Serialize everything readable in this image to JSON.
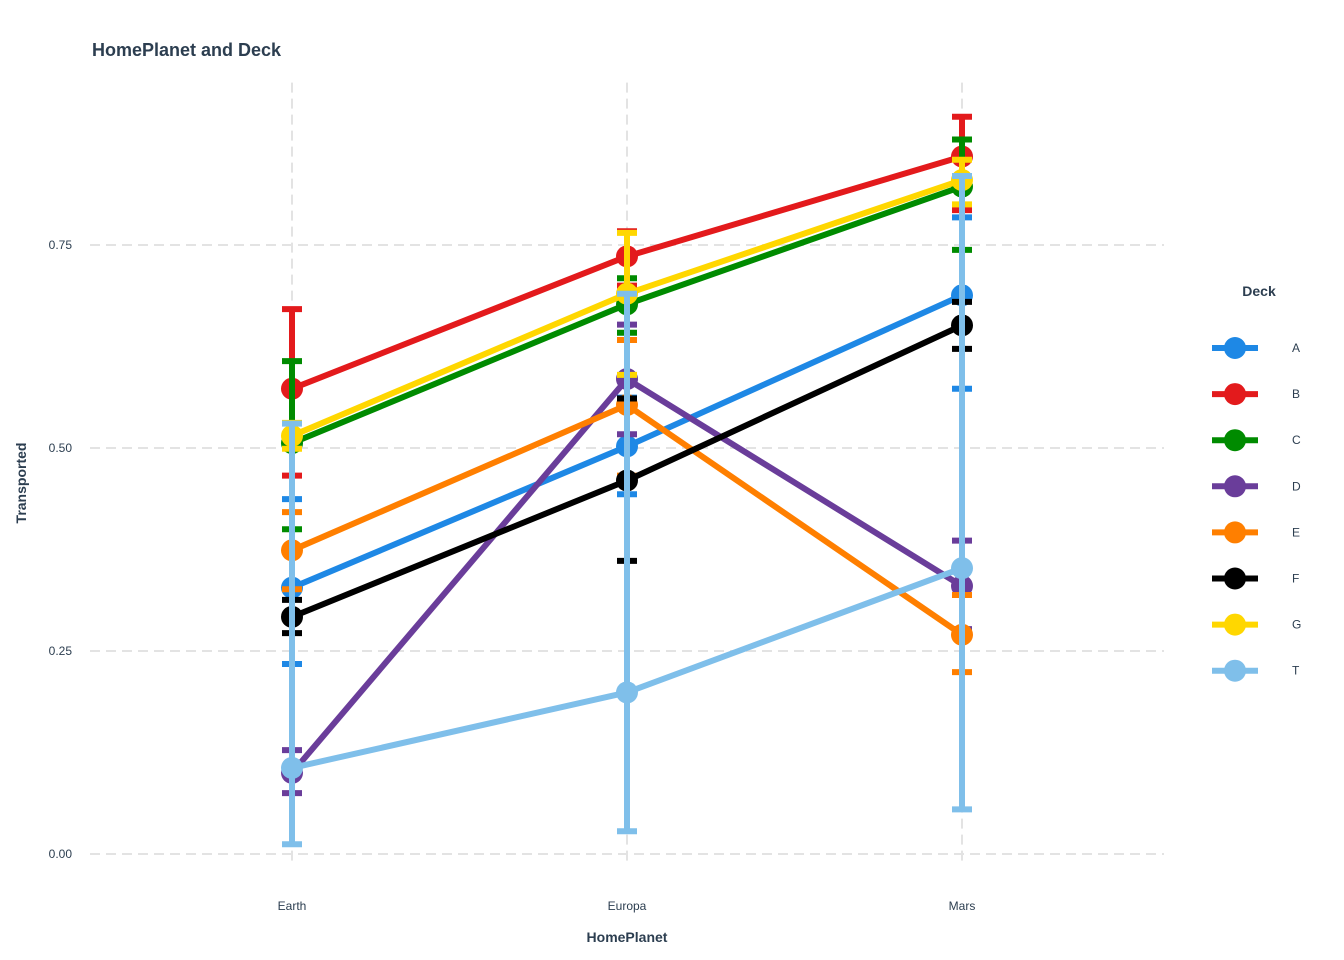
{
  "chart_data": {
    "type": "line",
    "title": "HomePlanet and Deck",
    "xlabel": "HomePlanet",
    "ylabel": "Transported",
    "categories": [
      "Earth",
      "Europa",
      "Mars"
    ],
    "ylim": [
      -0.01,
      0.95
    ],
    "yticks": [
      0.0,
      0.25,
      0.5,
      0.75
    ],
    "ytick_labels": [
      "0.00",
      "0.25",
      "0.50",
      "0.75"
    ],
    "grid": true,
    "error_bars": true,
    "legend": {
      "title": "Deck",
      "position": "right"
    },
    "series": [
      {
        "name": "A",
        "color": "#1e88e5",
        "values": [
          0.328,
          0.502,
          0.688
        ],
        "lower": [
          0.234,
          0.443,
          0.573
        ],
        "upper": [
          0.437,
          0.562,
          0.784
        ]
      },
      {
        "name": "B",
        "color": "#e31a1c",
        "values": [
          0.573,
          0.736,
          0.859
        ],
        "lower": [
          0.466,
          0.7,
          0.793
        ],
        "upper": [
          0.671,
          0.767,
          0.908
        ]
      },
      {
        "name": "C",
        "color": "#008b00",
        "values": [
          0.506,
          0.677,
          0.822
        ],
        "lower": [
          0.4,
          0.642,
          0.744
        ],
        "upper": [
          0.607,
          0.709,
          0.88
        ]
      },
      {
        "name": "D",
        "color": "#6a3d9a",
        "values": [
          0.1,
          0.585,
          0.33
        ],
        "lower": [
          0.075,
          0.517,
          0.277
        ],
        "upper": [
          0.128,
          0.652,
          0.386
        ]
      },
      {
        "name": "E",
        "color": "#ff7f00",
        "values": [
          0.374,
          0.553,
          0.27
        ],
        "lower": [
          0.326,
          0.466,
          0.224
        ],
        "upper": [
          0.421,
          0.633,
          0.319
        ]
      },
      {
        "name": "F",
        "color": "#000000",
        "values": [
          0.292,
          0.46,
          0.651
        ],
        "lower": [
          0.272,
          0.361,
          0.622
        ],
        "upper": [
          0.313,
          0.561,
          0.68
        ]
      },
      {
        "name": "G",
        "color": "#ffd700",
        "values": [
          0.515,
          0.69,
          0.83
        ],
        "lower": [
          0.499,
          0.59,
          0.8
        ],
        "upper": [
          0.531,
          0.765,
          0.855
        ]
      },
      {
        "name": "T",
        "color": "#7fbfea",
        "values": [
          0.106,
          0.199,
          0.352
        ],
        "lower": [
          0.012,
          0.028,
          0.055
        ],
        "upper": [
          0.53,
          0.69,
          0.835
        ]
      }
    ]
  }
}
